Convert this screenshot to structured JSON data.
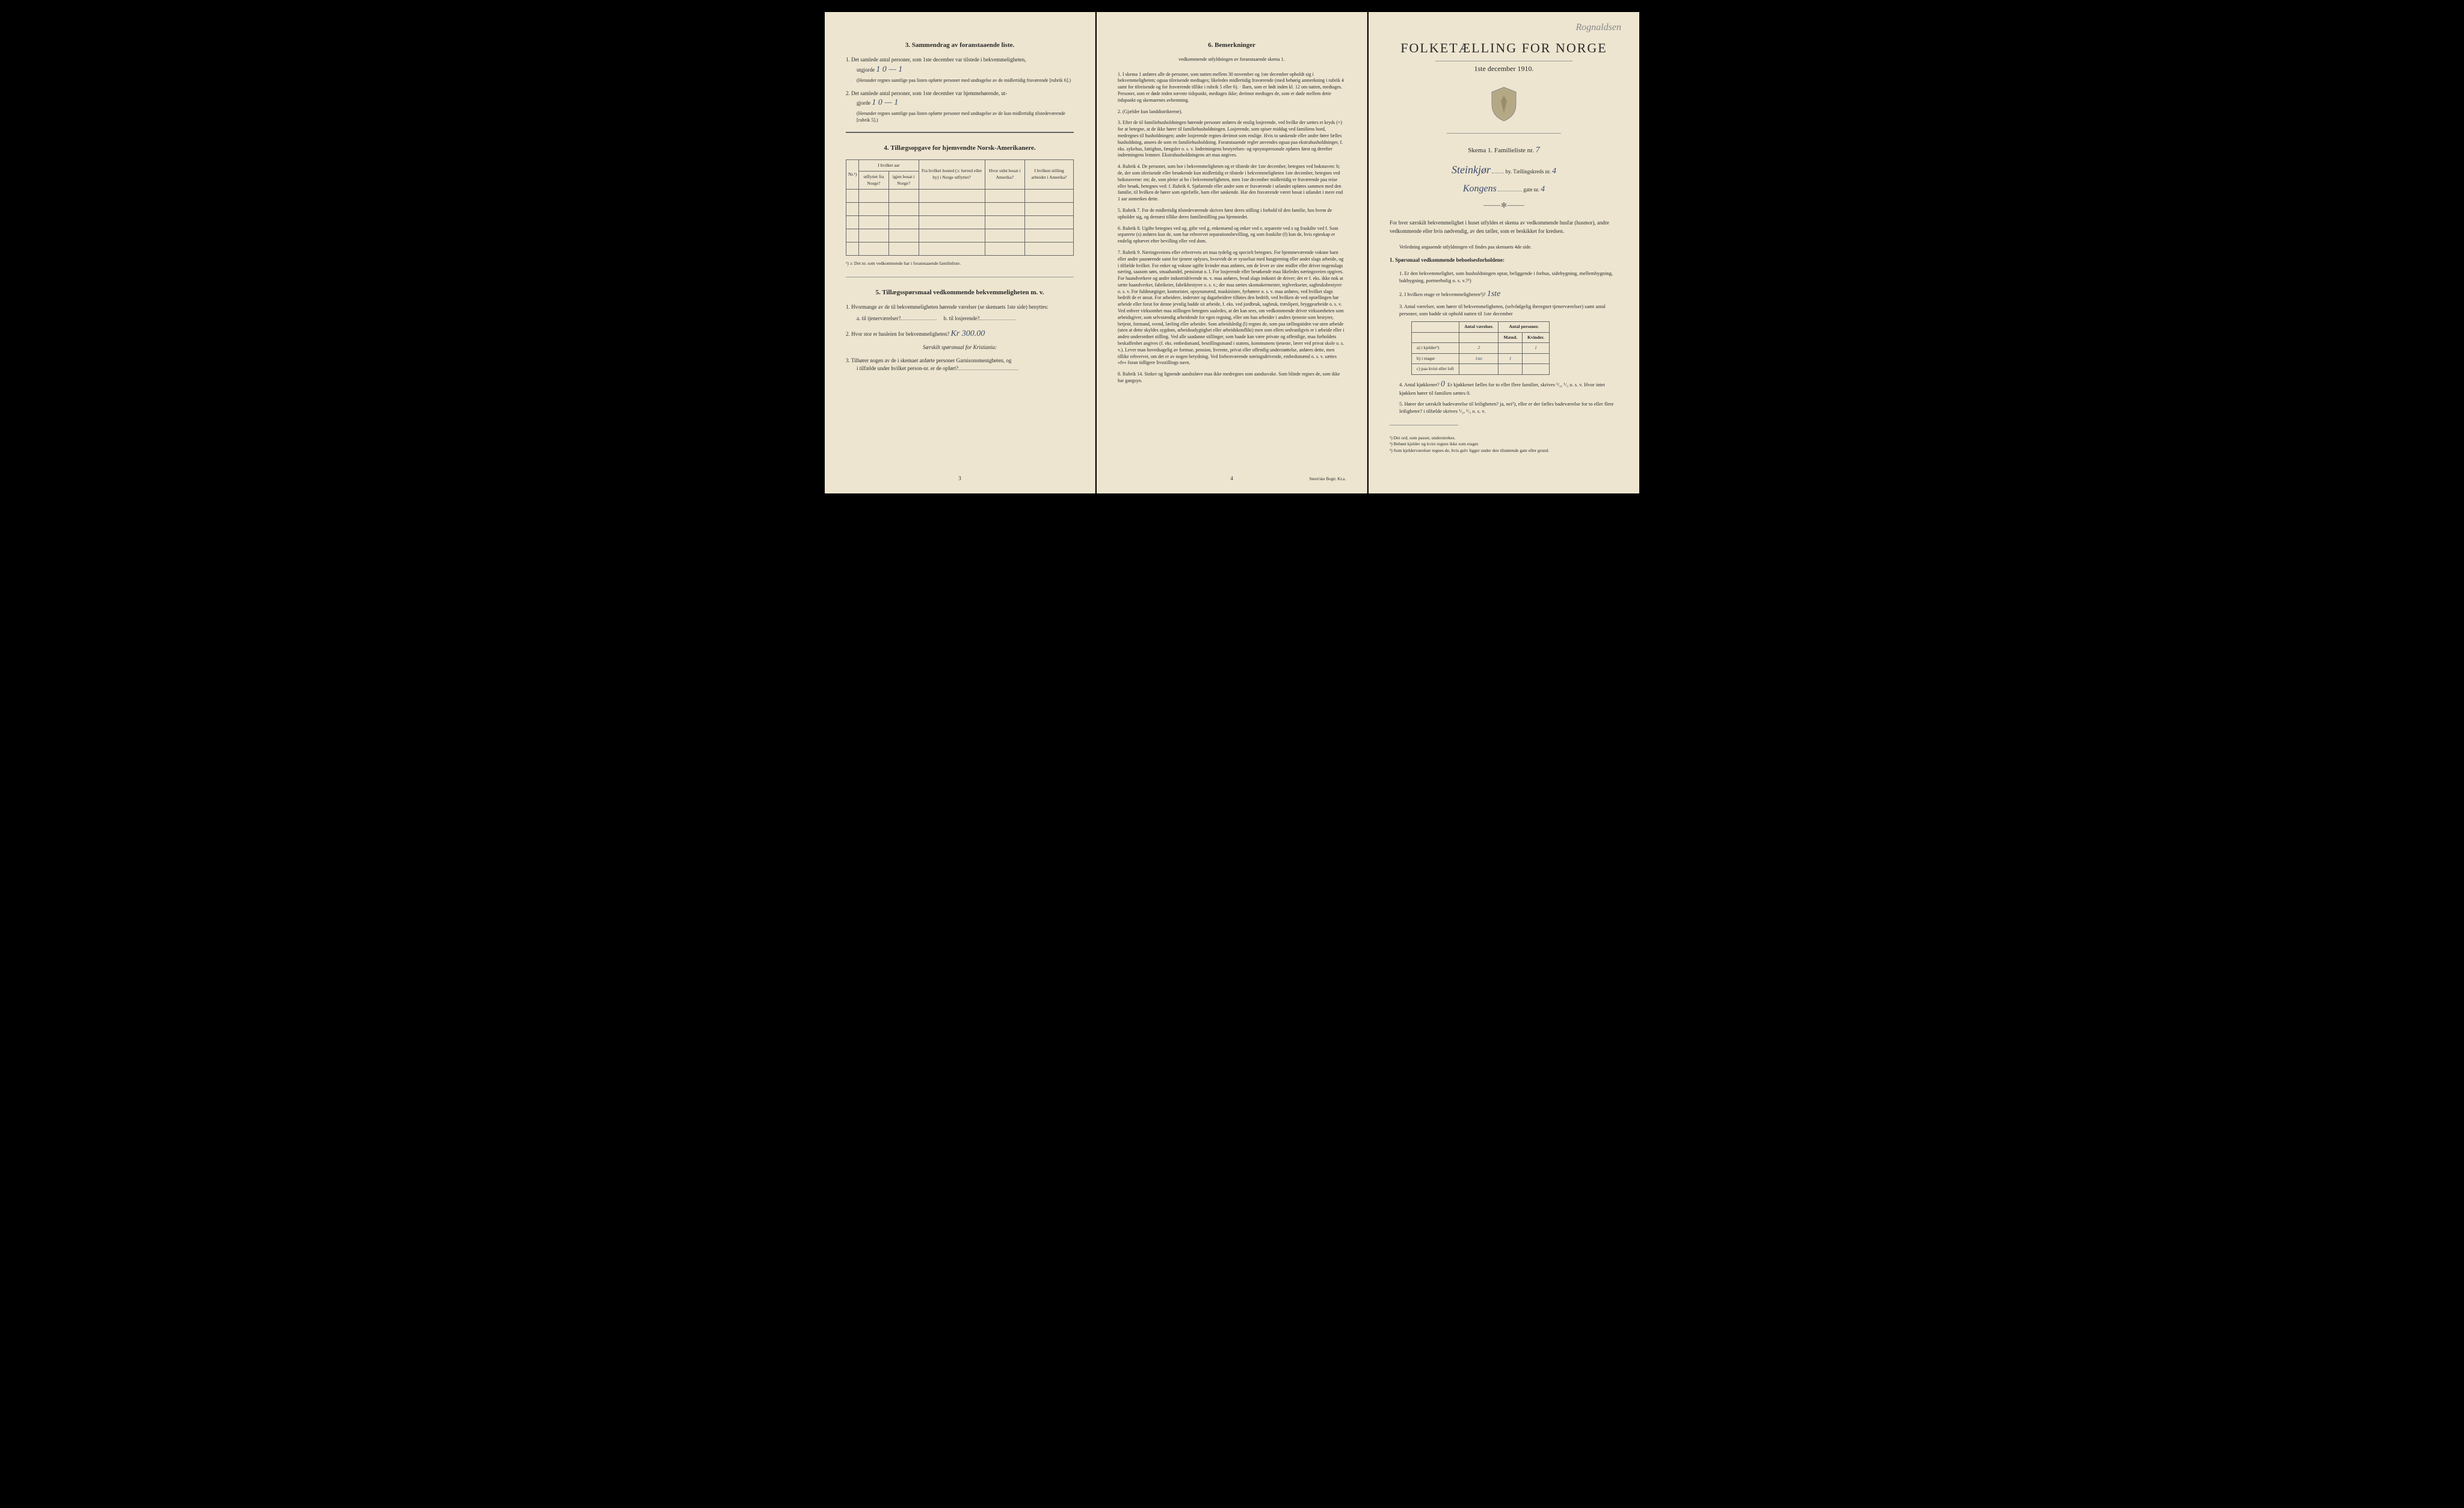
{
  "page_left": {
    "section3": {
      "title": "3.   Sammendrag av foranstaaende liste.",
      "item1": "1.  Det samlede antal personer, som 1ste december var tilstede i bekvemmeligheten,",
      "item1_label": "utgjorde",
      "item1_value": "1 0 — 1",
      "item1_paren": "(Herunder regnes samtlige paa listen opførte personer med undtagelse av de midlertidig fraværende [rubrik 6].)",
      "item2": "2.  Det samlede antal personer, som 1ste december var hjemmehørende, ut-",
      "item2_label": "gjorde",
      "item2_value": "1   0 — 1",
      "item2_paren": "(Herunder regnes samtlige paa listen opførte personer med undtagelse av de kun midlertidig tilstedeværende [rubrik 5].)"
    },
    "section4": {
      "title": "4.   Tillægsopgave for hjemvendte Norsk-Amerikanere.",
      "headers": {
        "nr": "Nr.¹)",
        "hvilket_aar": "I hvilket aar",
        "utflyttet": "utflyttet fra Norge?",
        "igjen_bosat": "igjen bosat i Norge?",
        "fra_bosted": "Fra hvilket bosted (ɔ: herred eller by) i Norge utflyttet?",
        "hvor_sidst": "Hvor sidst bosat i Amerika?",
        "stilling": "I hvilken stilling arbeidet i Amerika?"
      },
      "footnote": "¹) ɔ: Det nr. som vedkommende har i foranstaaende familieliste."
    },
    "section5": {
      "title": "5.   Tillægsspørsmaal vedkommende bekvemmeligheten m. v.",
      "q1": "1.  Hvormange av de til bekvemmeligheten hørende værelser (se skemaets 1ste side) benyttes:",
      "q1a": "a.  til tjenerværelser?",
      "q1b": "b.  til losjerende?",
      "q2": "2.  Hvor stor er husleien for bekvemmeligheten?",
      "q2_value": "Kr 300.00",
      "q2_note": "Særskilt spørsmaal for Kristiania:",
      "q3": "3.  Tilhører nogen av de i skemaet anførte personer Garnisonsmenigheten, og",
      "q3b": "i tilfælde under hvilket person-nr. er de opført?"
    },
    "pagenum": "3"
  },
  "page_center": {
    "title": "6.   Bemerkninger",
    "subtitle": "vedkommende utfyldningen av foranstaaende skema 1.",
    "items": [
      "1.  I skema 1 anføres alle de personer, som natten mellem 30 november og 1ste december opholdt sig i bekvemmeligheten; ogsaa tilreisende medtages; likeledes midlertidig fraværende (med behørig anmerkning i rubrik 4 samt for tilreisende og for fraværende tillike i rubrik 5 eller 6). · Barn, som er født inden kl. 12 om natten, medtages. Personer, som er døde inden nævnte tidspunkt, medtages ikke; derimot medtages de, som er døde mellem dette tidspunkt og skemaernes avhentning.",
      "2.  (Gjælder kun landdistrikterne).",
      "3.  Efter de til familiehusholdningen hørende personer anføres de enslig losjerende, ved hvilke der sættes et kryds (×) for at betegne, at de ikke hører til familiehusholdningen. Losjerende, som spiser middag ved familiens bord, medregnes til husholdningen; andre losjerende regnes derimot som enslige. Hvis to søskende eller andre fører fælles husholdning, ansees de som en familiehusholdning.\n   Foranstaaende regler anvendes ogsaa paa ekstrahusholdninger, f. eks. sykehus, fattighus, fængsler o. s. v. Indretningens bestyrelses- og opsynspersonale opføres først og derefter indretningens lemmer. Ekstrahusholdningens art maa angives.",
      "4.  Rubrik 4.  De personer, som bor i bekvemmeligheten og er tilstede der 1ste december, betegnes ved bokstaven: b; de, der som tilreisende eller besøkende kun midlertidig er tilstede i bekvemmeligheten 1ste december, betegnes ved bokstaverne: mt; de, som pleier at bo i bekvemmeligheten, men 1ste december midlertidig er fraværende paa reise eller besøk, betegnes ved: f.\n   Rubrik 6.  Sjøfarende eller andre som er fraværende i utlandet opføres sammen med den familie, til hvilken de hører som egtefælle, barn eller søskende.\n   Har den fraværende været bosat i utlandet i mere end 1 aar anmerkes dette.",
      "5.  Rubrik 7.  For de midlertidig tilstedeværende skrives først deres stilling i forhold til den familie, hos hvem de opholder sig, og dernæst tillike deres familiestilling paa hjemstedet.",
      "6.  Rubrik 8.  Ugifte betegnes ved ug, gifte ved g, enkemænd og enker ved e, separerte ved s og fraskilte ved f. Som separerte (s) anføres kun de, som har erhvervet separationsbevilling, og som fraskilte (f) kun de, hvis egteskap er endelig ophævet efter bevilling eller ved dom.",
      "7.  Rubrik 9.  Næringsveiens eller erhvervets art maa tydelig og specielt betegnes.\n   For hjemmeværende voksne barn eller andre paarørende samt for tjenere oplyses, hvorvidt de er sysselsat med husgjerning eller andet slags arbeide, og i tilfælde hvilket. For enker og voksne ugifte kvinder maa anføres, om de lever av sine midler eller driver nogenslags næring, saasom søm, smaahandel, pensionat o. l.\n   For losjerende eller besøkende maa likeledes næringsveien opgives.\n   For haandverkere og andre industridrivende m. v. maa anføres, hvad slags industri de driver; det er f. eks. ikke nok at sætte haandverker, fabrikeier, fabrikbestyrer o. s. v.; der maa sættes skomakermester, teglverkseier, sagbruksbestyrer o. s. v.\n   For fuldmægtiger, kontorister, opsynsmænd, maskinister, fyrbøtere o. s. v. maa anføres, ved hvilket slags bedrift de er ansat.\n   For arbeidere, inderster og dagarbeidere tilføies den bedrift, ved hvilken de ved optællingen har arbeide eller forut for denne jevnlig hadde sit arbeide, f. eks. ved jordbruk, sagbruk, træsliperi, bryggearbeide o. s. v.\n   Ved enhver virksomhet maa stillingen betegnes saaledes, at det kan sees, om vedkommende driver virksomheten som arbeidsgiver, som selvstændig arbeidende for egen regning, eller om han arbeider i andres tjeneste som bestyrer, betjent, formand, svend, lærling eller arbeider.\n   Som arbeidsledig (l) regnes de, som paa tællingstiden var uten arbeide (uten at dette skyldes sygdom, arbeidsudygtighet eller arbeidskonflikt) men som ellers sedvanligvis er i arbeide eller i anden underordnet stilling.\n   Ved alle saadanne stillinger, som baade kan være private og offentlige, maa forholdets beskaffenhet angives (f. eks. embedsmand, bestillingsmand i statens, kommunens tjeneste, lærer ved privat skole o. s. v.).\n   Lever man hovedsagelig av formue, pension, livrente, privat eller offentlig understøttelse, anføres dette, men tillike erhvervet, om det er av nogen betydning.\n   Ved forhenværende næringsdrivende, embedsmænd o. s. v. sættes «fv» foran tidligere livsstillings navn.",
      "8.  Rubrik 14.  Sinker og lignende aandssløve maa ikke medregnes som aandssvake.\n   Som blinde regnes de, som ikke har gangsyn."
    ],
    "pagenum": "4",
    "printer": "Steen'ske Bogtr.  Kr.a."
  },
  "page_right": {
    "handwritten_top": "Rognaldsen",
    "title": "FOLKETÆLLING FOR NORGE",
    "subtitle": "1ste december 1910.",
    "skema_label": "Skema 1.   Familieliste nr.",
    "familieliste_nr": "7",
    "by_label": "by.  Tællingskreds nr.",
    "by_value": "Steinkjør",
    "kreds_nr": "4",
    "gate_label": "gate nr.",
    "gate_value": "Kongens",
    "gate_nr": "4",
    "intro": "For hver særskilt bekvemmelighet i huset utfyldes et skema av vedkommende husfar (husmor), andre vedkommende eller hvis nødvendig, av den tæller, som er beskikket for kredsen.",
    "veiledning": "Veiledning angaaende utfyldningen vil findes paa skemaets 4de side.",
    "q1_title": "1.  Spørsmaal vedkommende beboelsesforholdene:",
    "q1_1": "1.  Er den bekvemmelighet, som husholdningen optar, beliggende i forhus, sidebygning, mellembygning, bakbygning, portnerbolig o. s. v.?¹)",
    "q1_2": "2.  I hvilken etage er bekvemmeligheten²)?",
    "q1_2_value": "1ste",
    "q1_3": "3.  Antal værelser, som hører til bekvemmeligheten, (selvfølgelig iberegnet tjenerværelser) samt antal personer, som hadde sit ophold natten til 1ste december",
    "table": {
      "h1": "Antal værelser.",
      "h2": "Antal personer.",
      "h2a": "Mænd.",
      "h2b": "Kvinder.",
      "r1": "a) i kjelder³)",
      "r1_v": "2",
      "r1_m": "",
      "r1_k": "1",
      "r2": "b) i etager",
      "r2_v": "1ste",
      "r2_m": "1",
      "r3": "c) paa kvist eller loft"
    },
    "q1_4": "4.  Antal kjøkkener?",
    "q1_4_value": "0",
    "q1_4_rest": "Er kjøkkenet fælles for to eller flere familier, skrives ¹/₂, ¹/₃ o. s. v.  Hvor intet kjøkken hører til familien sættes 0.",
    "q1_5": "5.  Hører der særskilt badeværelse til leiligheten?  ja, nei¹), eller er der fælles badeværelse for to eller flere leiligheter? i tilfælde skrives ¹/₂, ¹/₃ o. s. v.",
    "footnotes": [
      "¹)  Det ord, som passer, understrekes.",
      "²)  Bebøet kjelder og kvist regnes ikke som etager.",
      "³)  Som kjelderværelser regnes de, hvis gulv ligger under den tilstøtende gate eller grund."
    ]
  },
  "colors": {
    "paper": "#ede5d0",
    "ink": "#2a2a2a",
    "handwriting": "#3a4a6a",
    "border": "#666"
  }
}
